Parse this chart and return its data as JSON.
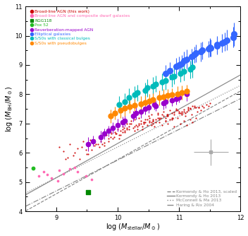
{
  "xlim": [
    8.5,
    12.0
  ],
  "ylim": [
    4.0,
    11.0
  ],
  "bg_color": "#ffffff",
  "line_color": "#888888",
  "legend_labels": [
    "Broad-line AGN (this work)",
    "Broad-line AGN and composite dwarf galaxies",
    "RGG118",
    "Pox 52",
    "Reverberation-mapped AGN",
    "Elliptical galaxies",
    "S/S0s with classical bulges",
    "S/S0s with pseudobulges"
  ],
  "legend_colors": [
    "#cc0000",
    "#ff69b4",
    "#008800",
    "#22bb22",
    "#9900cc",
    "#3366ff",
    "#00bbbb",
    "#ff8800"
  ],
  "line_labels": [
    "Kormendy & Ho 2013, scaled",
    "Kormendy & Ho 2013",
    "McConnell & Ma 2013",
    "Haring & Rix 2004"
  ],
  "lines": [
    {
      "slope": 1.17,
      "intercept": -5.93,
      "style": "--"
    },
    {
      "slope": 1.17,
      "intercept": -5.38,
      "style": "-"
    },
    {
      "slope": 1.05,
      "intercept": -4.3,
      "style": ":"
    },
    {
      "slope": 1.05,
      "intercept": -4.75,
      "style": "-."
    }
  ],
  "broad_line_agn_x": [
    9.05,
    9.12,
    9.18,
    9.22,
    9.28,
    9.35,
    9.38,
    9.44,
    9.5,
    9.53,
    9.58,
    9.62,
    9.65,
    9.7,
    9.74,
    9.78,
    9.82,
    9.85,
    9.88,
    9.92,
    9.94,
    9.97,
    10.0,
    10.02,
    10.05,
    10.08,
    10.12,
    10.15,
    10.18,
    10.22,
    10.25,
    10.28,
    10.32,
    10.35,
    10.38,
    10.4,
    10.42,
    10.45,
    10.48,
    10.5,
    10.52,
    10.55,
    10.58,
    10.6,
    10.62,
    10.65,
    10.68,
    10.7,
    10.72,
    10.75,
    10.78,
    10.8,
    10.82,
    10.85,
    10.88,
    10.9,
    10.92,
    10.95,
    10.98,
    11.0,
    11.02,
    11.05,
    11.08,
    11.1,
    11.12,
    11.15,
    11.18,
    11.2,
    11.22,
    11.25,
    11.28,
    11.3,
    11.35,
    11.4,
    11.45,
    11.5,
    9.3,
    9.42,
    9.55,
    9.68,
    9.8,
    9.95,
    10.1,
    10.22,
    10.38,
    10.52,
    10.65,
    10.8,
    10.95,
    11.05,
    11.18,
    11.32,
    11.48,
    9.15,
    9.48,
    9.72,
    9.98,
    10.28,
    10.55,
    10.78,
    11.02,
    11.25,
    9.62,
    9.88,
    10.15,
    10.42,
    10.68,
    10.92,
    11.15,
    11.38,
    10.08,
    10.35,
    10.58,
    10.82,
    11.08,
    11.32,
    9.85,
    10.12,
    10.4,
    10.62,
    10.88,
    11.12,
    10.2,
    10.48,
    10.72,
    10.98,
    11.22,
    9.75,
    10.05,
    10.32,
    10.58,
    10.85,
    11.1,
    9.52,
    9.78,
    10.02,
    10.28,
    10.55,
    10.78,
    11.05,
    10.15,
    10.42,
    10.65,
    10.88,
    11.15,
    10.3,
    10.52,
    10.75,
    11.0,
    11.28,
    9.9,
    10.18,
    10.45,
    10.68,
    10.92,
    11.18,
    10.08,
    10.35,
    10.58,
    10.82,
    11.08
  ],
  "broad_line_agn_y": [
    6.2,
    6.05,
    5.85,
    6.3,
    5.92,
    6.15,
    5.8,
    6.4,
    5.95,
    6.25,
    6.1,
    6.45,
    6.3,
    6.2,
    6.55,
    6.35,
    6.6,
    6.4,
    6.7,
    6.5,
    6.55,
    6.65,
    6.8,
    6.6,
    6.75,
    6.9,
    6.7,
    7.0,
    6.8,
    7.1,
    6.85,
    7.15,
    6.9,
    7.2,
    7.0,
    6.8,
    7.05,
    7.15,
    6.95,
    7.25,
    7.05,
    7.3,
    7.1,
    6.9,
    7.15,
    7.35,
    7.05,
    7.2,
    6.95,
    7.4,
    7.1,
    7.3,
    7.0,
    7.45,
    7.15,
    7.2,
    6.9,
    7.5,
    7.2,
    7.35,
    7.0,
    7.4,
    7.1,
    7.25,
    6.95,
    7.55,
    7.15,
    7.3,
    7.05,
    7.6,
    7.2,
    7.4,
    7.45,
    7.55,
    7.65,
    7.7,
    6.0,
    6.2,
    6.45,
    6.3,
    6.6,
    6.7,
    6.85,
    7.0,
    7.1,
    7.2,
    7.3,
    7.25,
    7.45,
    7.35,
    7.5,
    7.55,
    7.6,
    5.8,
    6.1,
    6.4,
    6.65,
    6.9,
    7.05,
    7.2,
    7.35,
    7.55,
    6.25,
    6.55,
    6.8,
    7.0,
    7.15,
    7.3,
    7.45,
    7.6,
    6.7,
    6.95,
    7.1,
    7.25,
    7.4,
    7.55,
    6.5,
    6.75,
    6.9,
    7.05,
    7.2,
    7.4,
    7.0,
    7.15,
    7.3,
    7.45,
    7.6,
    6.3,
    6.6,
    6.8,
    7.0,
    7.15,
    7.35,
    5.95,
    6.25,
    6.5,
    6.75,
    6.95,
    7.1,
    7.3,
    6.85,
    7.05,
    7.2,
    7.35,
    7.5,
    6.95,
    7.1,
    7.25,
    7.4,
    7.55,
    6.65,
    6.9,
    7.05,
    7.2,
    7.38,
    7.52,
    6.8,
    7.0,
    7.15,
    7.3,
    7.48
  ],
  "composite_x": [
    8.72,
    8.8,
    8.92,
    9.02,
    9.12,
    9.22,
    9.35,
    9.48,
    9.58,
    9.05,
    8.85,
    9.3
  ],
  "composite_y": [
    5.2,
    5.35,
    5.15,
    5.05,
    5.28,
    5.45,
    5.35,
    5.2,
    5.1,
    5.4,
    5.25,
    5.5
  ],
  "rgg118_x": [
    9.52
  ],
  "rgg118_y": [
    4.65
  ],
  "pox52_x": [
    8.62
  ],
  "pox52_y": [
    5.48
  ],
  "reverb_x": [
    9.6,
    9.72,
    9.85,
    10.0,
    10.12,
    10.25,
    10.38,
    10.5,
    10.62,
    10.75,
    10.88,
    11.0,
    11.12,
    9.52,
    9.78,
    9.92,
    10.08,
    10.3,
    10.45,
    10.6,
    10.78,
    10.95
  ],
  "reverb_y": [
    6.4,
    6.55,
    6.75,
    6.95,
    7.1,
    7.25,
    7.4,
    7.55,
    7.6,
    7.7,
    7.8,
    7.9,
    8.0,
    6.3,
    6.65,
    6.85,
    7.05,
    7.35,
    7.5,
    7.65,
    7.75,
    7.85
  ],
  "reverb_yerr": [
    0.18,
    0.2,
    0.18,
    0.22,
    0.2,
    0.18,
    0.22,
    0.2,
    0.18,
    0.22,
    0.2,
    0.18,
    0.22,
    0.25,
    0.18,
    0.2,
    0.18,
    0.22,
    0.2,
    0.18,
    0.22,
    0.2
  ],
  "ellip_x": [
    10.85,
    11.0,
    11.12,
    11.25,
    11.38,
    11.5,
    11.62,
    11.78,
    11.9,
    10.95,
    11.08,
    11.2,
    11.35,
    11.48,
    11.62,
    11.75,
    11.88,
    10.78,
    11.05,
    11.28,
    11.52,
    11.7
  ],
  "ellip_y": [
    8.8,
    9.0,
    9.2,
    9.35,
    9.5,
    9.6,
    9.7,
    9.85,
    10.05,
    8.95,
    9.15,
    9.28,
    9.45,
    9.55,
    9.65,
    9.8,
    9.95,
    8.7,
    9.05,
    9.4,
    9.58,
    9.75
  ],
  "ellip_yerr": [
    0.3,
    0.28,
    0.32,
    0.28,
    0.3,
    0.32,
    0.28,
    0.35,
    0.4,
    0.28,
    0.3,
    0.28,
    0.32,
    0.28,
    0.3,
    0.32,
    0.35,
    0.3,
    0.28,
    0.3,
    0.28,
    0.32
  ],
  "classical_x": [
    10.02,
    10.18,
    10.32,
    10.48,
    10.62,
    10.78,
    10.92,
    11.08,
    11.22,
    10.12,
    10.28,
    10.45,
    10.58,
    10.72,
    10.88,
    11.02,
    11.18
  ],
  "classical_y": [
    7.65,
    7.9,
    8.05,
    8.22,
    8.35,
    8.48,
    8.62,
    8.78,
    8.92,
    7.75,
    7.98,
    8.12,
    8.28,
    8.42,
    8.58,
    8.7,
    8.85
  ],
  "classical_yerr": [
    0.28,
    0.3,
    0.28,
    0.3,
    0.28,
    0.32,
    0.28,
    0.3,
    0.35,
    0.28,
    0.3,
    0.28,
    0.3,
    0.28,
    0.32,
    0.28,
    0.3
  ],
  "pseudo_x": [
    9.88,
    10.05,
    10.2,
    10.38,
    10.52,
    10.68,
    10.82,
    10.98,
    11.12,
    9.95,
    10.12,
    10.28,
    10.45,
    10.58,
    10.75,
    10.88,
    11.05
  ],
  "pseudo_y": [
    7.25,
    7.45,
    7.58,
    7.68,
    7.78,
    7.88,
    7.95,
    8.02,
    8.1,
    7.35,
    7.52,
    7.62,
    7.72,
    7.82,
    7.92,
    7.98,
    8.06
  ],
  "pseudo_yerr": [
    0.22,
    0.25,
    0.22,
    0.25,
    0.22,
    0.25,
    0.22,
    0.25,
    0.22,
    0.22,
    0.25,
    0.22,
    0.25,
    0.22,
    0.25,
    0.22,
    0.25
  ],
  "err_example_x": 11.52,
  "err_example_y": 6.02,
  "err_example_xerr": 0.28,
  "err_example_yerr": 0.45
}
